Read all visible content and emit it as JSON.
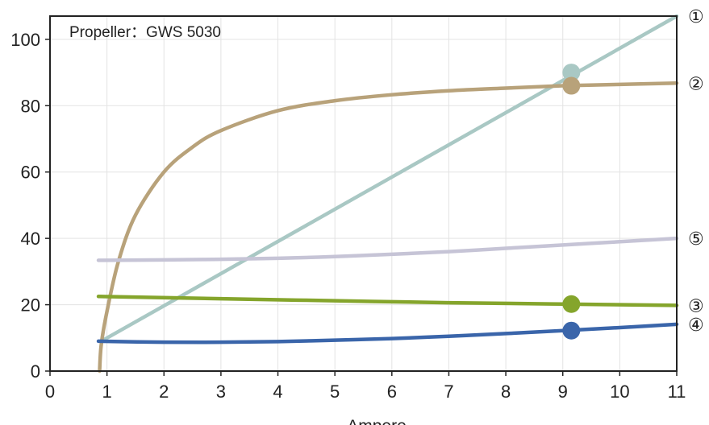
{
  "chart_data": {
    "type": "line",
    "annotation": "Propeller：GWS 5030",
    "xlabel": "Ampere",
    "ylabel": "",
    "xlim": [
      0,
      11
    ],
    "ylim": [
      0,
      107
    ],
    "x_ticks": [
      0,
      1,
      2,
      3,
      4,
      5,
      6,
      7,
      8,
      9,
      10,
      11
    ],
    "y_ticks": [
      0,
      20,
      40,
      60,
      80,
      100
    ],
    "grid": true,
    "legend": "end-of-line circled numbers (right side)",
    "series": [
      {
        "name": "①",
        "color": "#a9c8c4",
        "x": [
          0.9,
          11
        ],
        "y": [
          9,
          107
        ],
        "marker": {
          "x": 9.15,
          "y": 90
        }
      },
      {
        "name": "②",
        "color": "#b8a27a",
        "x": [
          0.87,
          0.9,
          1.0,
          1.2,
          1.5,
          2.0,
          2.5,
          3.0,
          4.0,
          5.0,
          6.0,
          7.0,
          8.0,
          9.0,
          10.0,
          11.0
        ],
        "y": [
          0,
          8,
          18,
          33,
          47,
          60,
          67.5,
          72.5,
          78.5,
          81.5,
          83.3,
          84.5,
          85.3,
          86,
          86.4,
          86.8
        ],
        "marker": {
          "x": 9.15,
          "y": 86
        }
      },
      {
        "name": "③",
        "color": "#85a52c",
        "x": [
          0.85,
          3,
          5,
          7,
          9,
          11
        ],
        "y": [
          22.5,
          21.8,
          21.2,
          20.6,
          20.2,
          19.8
        ],
        "marker": {
          "x": 9.15,
          "y": 20.2
        }
      },
      {
        "name": "④",
        "color": "#3a65aa",
        "x": [
          0.85,
          2,
          3,
          4,
          5,
          6,
          7,
          8,
          9,
          10,
          11
        ],
        "y": [
          9,
          8.7,
          8.7,
          8.9,
          9.3,
          9.8,
          10.5,
          11.3,
          12.2,
          13.1,
          14.1
        ],
        "marker": {
          "x": 9.15,
          "y": 12.2
        }
      },
      {
        "name": "⑤",
        "color": "#c6c4d6",
        "x": [
          0.85,
          2,
          3,
          4,
          5,
          6,
          7,
          8,
          9,
          10,
          11
        ],
        "y": [
          33.4,
          33.5,
          33.7,
          34,
          34.5,
          35.2,
          36,
          37,
          38,
          39,
          40
        ]
      }
    ]
  }
}
